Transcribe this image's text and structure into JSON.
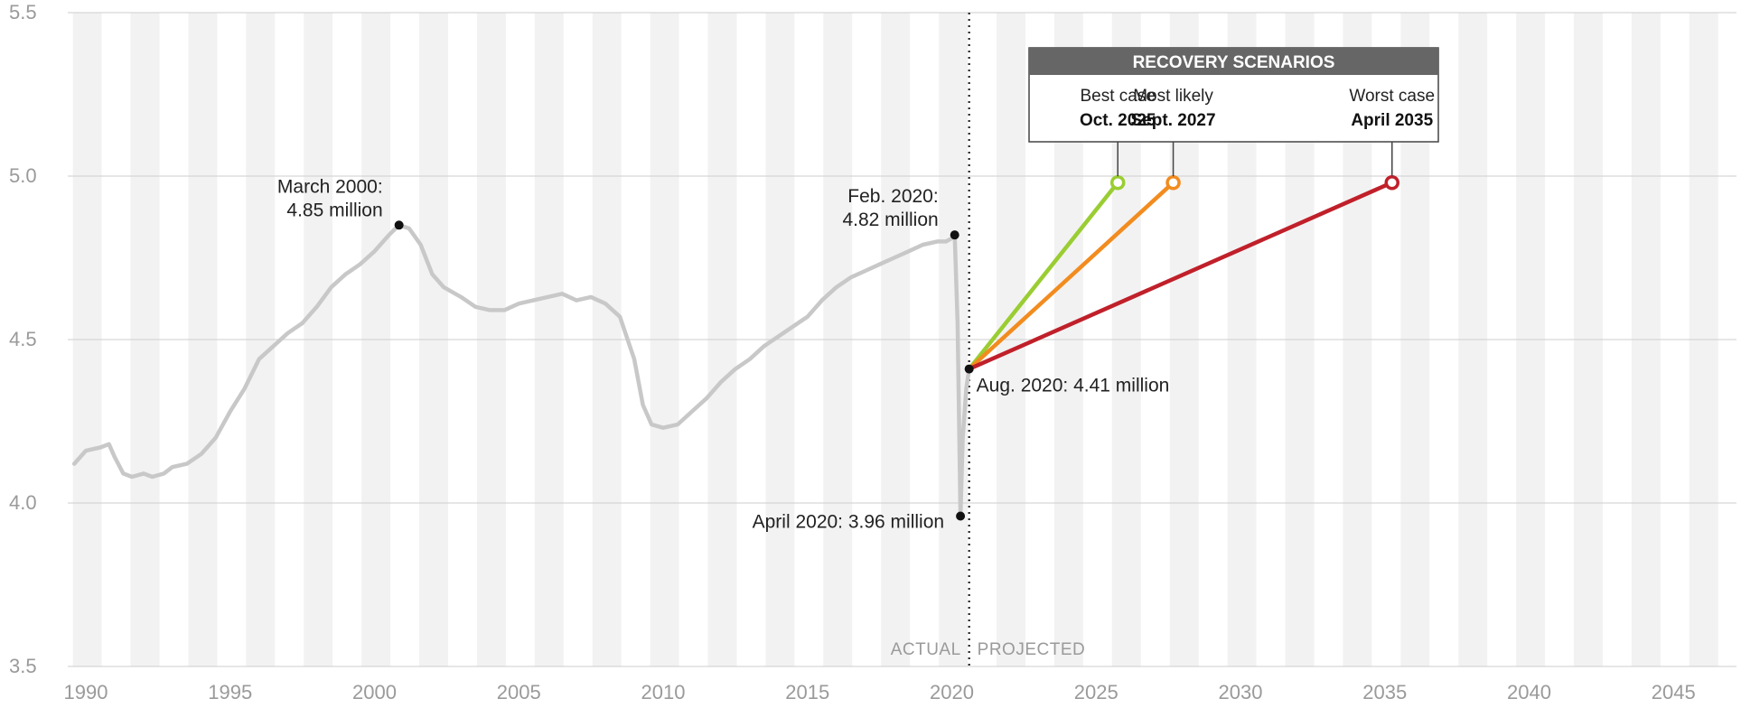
{
  "chart_data": {
    "type": "line",
    "title": "",
    "xlabel": "",
    "ylabel": "",
    "xlim": [
      1989.6,
      2049.0
    ],
    "ylim": [
      3.5,
      5.5
    ],
    "x_ticks": [
      "1990",
      "1995",
      "2000",
      "2005",
      "2010",
      "2015",
      "2020",
      "2025",
      "2030",
      "2035",
      "2040",
      "2045"
    ],
    "y_ticks": [
      "3.5",
      "4.0",
      "4.5",
      "5.0",
      "5.5"
    ],
    "grid": true,
    "background_bands": "alternating yearly shaded columns",
    "series": [
      {
        "color": "#c8c8c8",
        "points": [
          [
            1989.6,
            4.12
          ],
          [
            1990.0,
            4.16
          ],
          [
            1990.5,
            4.17
          ],
          [
            1990.8,
            4.18
          ],
          [
            1991.0,
            4.14
          ],
          [
            1991.3,
            4.09
          ],
          [
            1991.6,
            4.08
          ],
          [
            1992.0,
            4.09
          ],
          [
            1992.3,
            4.08
          ],
          [
            1992.7,
            4.09
          ],
          [
            1993.0,
            4.11
          ],
          [
            1993.5,
            4.12
          ],
          [
            1994.0,
            4.15
          ],
          [
            1994.5,
            4.2
          ],
          [
            1995.0,
            4.28
          ],
          [
            1995.5,
            4.35
          ],
          [
            1996.0,
            4.44
          ],
          [
            1996.5,
            4.48
          ],
          [
            1997.0,
            4.52
          ],
          [
            1997.5,
            4.55
          ],
          [
            1998.0,
            4.6
          ],
          [
            1998.5,
            4.66
          ],
          [
            1999.0,
            4.7
          ],
          [
            1999.5,
            4.73
          ],
          [
            2000.0,
            4.77
          ],
          [
            2000.5,
            4.82
          ],
          [
            2000.85,
            4.85
          ],
          [
            2001.2,
            4.84
          ],
          [
            2001.6,
            4.79
          ],
          [
            2002.0,
            4.7
          ],
          [
            2002.4,
            4.66
          ],
          [
            2003.0,
            4.63
          ],
          [
            2003.5,
            4.6
          ],
          [
            2004.0,
            4.59
          ],
          [
            2004.5,
            4.59
          ],
          [
            2005.0,
            4.61
          ],
          [
            2005.5,
            4.62
          ],
          [
            2006.0,
            4.63
          ],
          [
            2006.5,
            4.64
          ],
          [
            2007.0,
            4.62
          ],
          [
            2007.5,
            4.63
          ],
          [
            2008.0,
            4.61
          ],
          [
            2008.5,
            4.57
          ],
          [
            2009.0,
            4.44
          ],
          [
            2009.3,
            4.3
          ],
          [
            2009.6,
            4.24
          ],
          [
            2010.0,
            4.23
          ],
          [
            2010.5,
            4.24
          ],
          [
            2011.0,
            4.28
          ],
          [
            2011.5,
            4.32
          ],
          [
            2012.0,
            4.37
          ],
          [
            2012.5,
            4.41
          ],
          [
            2013.0,
            4.44
          ],
          [
            2013.5,
            4.48
          ],
          [
            2014.0,
            4.51
          ],
          [
            2014.5,
            4.54
          ],
          [
            2015.0,
            4.57
          ],
          [
            2015.5,
            4.62
          ],
          [
            2016.0,
            4.66
          ],
          [
            2016.5,
            4.69
          ],
          [
            2017.0,
            4.71
          ],
          [
            2017.5,
            4.73
          ],
          [
            2018.0,
            4.75
          ],
          [
            2018.5,
            4.77
          ],
          [
            2019.0,
            4.79
          ],
          [
            2019.5,
            4.8
          ],
          [
            2019.8,
            4.8
          ],
          [
            2020.0,
            4.81
          ],
          [
            2020.1,
            4.82
          ],
          [
            2020.2,
            4.55
          ],
          [
            2020.3,
            3.96
          ],
          [
            2020.38,
            4.2
          ],
          [
            2020.5,
            4.35
          ],
          [
            2020.6,
            4.41
          ]
        ]
      },
      {
        "name": "Best case",
        "color": "#9acd32",
        "points": [
          [
            2020.6,
            4.41
          ],
          [
            2025.75,
            4.98
          ]
        ]
      },
      {
        "name": "Most likely",
        "color": "#f28c1f",
        "points": [
          [
            2020.6,
            4.41
          ],
          [
            2027.67,
            4.98
          ]
        ]
      },
      {
        "name": "Worst case",
        "color": "#c0202a",
        "points": [
          [
            2020.6,
            4.41
          ],
          [
            2035.25,
            4.98
          ]
        ]
      }
    ],
    "divider": {
      "x": 2020.6,
      "left_label": "ACTUAL",
      "right_label": "PROJECTED"
    },
    "annotations": [
      {
        "x": 2000.85,
        "y": 4.85,
        "lines": [
          "March 2000:",
          "4.85 million"
        ],
        "align": "left-above"
      },
      {
        "x": 2020.1,
        "y": 4.82,
        "lines": [
          "Feb. 2020:",
          "4.82 million"
        ],
        "align": "left-above"
      },
      {
        "x": 2020.3,
        "y": 3.96,
        "lines": [
          "April 2020: 3.96 million"
        ],
        "align": "left"
      },
      {
        "x": 2020.6,
        "y": 4.41,
        "lines": [
          "Aug. 2020: 4.41 million"
        ],
        "align": "right-below"
      }
    ],
    "legend": {
      "title": "RECOVERY SCENARIOS",
      "placement": "top-center",
      "header_color": "#666666",
      "items": [
        {
          "label": "Best case",
          "date": "Oct. 2025"
        },
        {
          "label": "Most likely",
          "date": "Sept. 2027"
        },
        {
          "label": "Worst case",
          "date": "April 2035"
        }
      ]
    }
  }
}
